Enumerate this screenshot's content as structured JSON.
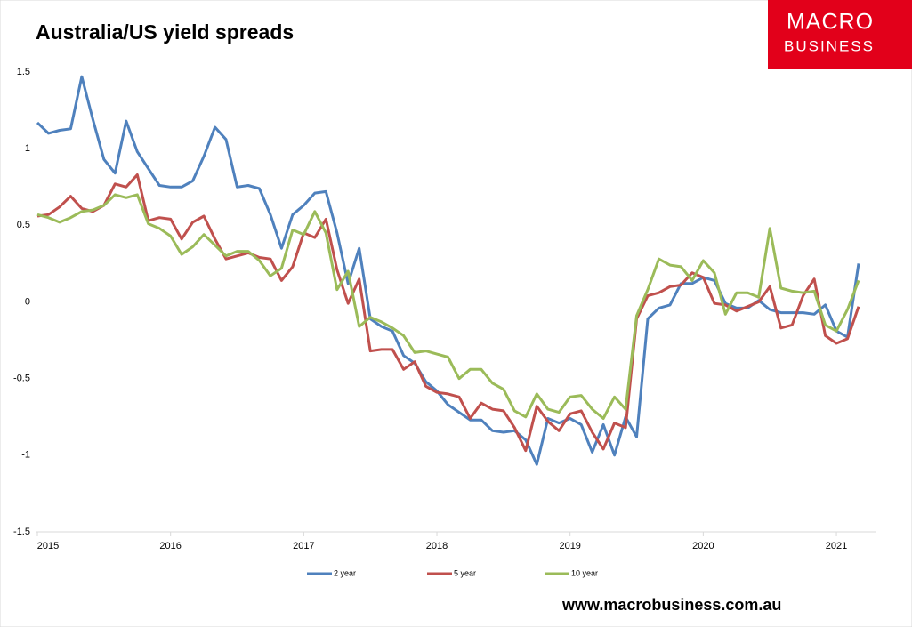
{
  "chart_data": {
    "type": "line",
    "title": "Australia/US yield spreads",
    "logo": [
      "MACRO",
      "BUSINESS"
    ],
    "footer": "www.macrobusiness.com.au",
    "categories": [
      "2015",
      null,
      null,
      null,
      null,
      null,
      null,
      null,
      null,
      null,
      null,
      null,
      "2016",
      null,
      null,
      null,
      null,
      null,
      null,
      null,
      null,
      null,
      null,
      null,
      "2017",
      null,
      null,
      null,
      null,
      null,
      null,
      null,
      null,
      null,
      null,
      null,
      "2018",
      null,
      null,
      null,
      null,
      null,
      null,
      null,
      null,
      null,
      null,
      null,
      "2019",
      null,
      null,
      null,
      null,
      null,
      null,
      null,
      null,
      null,
      null,
      null,
      "2020",
      null,
      null,
      null,
      null,
      null,
      null,
      null,
      null,
      null,
      null,
      null,
      "2021",
      null,
      null
    ],
    "ylim": [
      -1.5,
      1.5
    ],
    "yticks": [
      -1.5,
      -1,
      -0.5,
      0,
      0.5,
      1,
      1.5
    ],
    "grid": false,
    "legend": "bottom",
    "series": [
      {
        "name": "2 year",
        "color": "#4f81bd",
        "values": [
          1.17,
          1.1,
          1.12,
          1.13,
          1.47,
          1.19,
          0.93,
          0.84,
          1.18,
          0.98,
          0.87,
          0.76,
          0.75,
          0.75,
          0.79,
          0.95,
          1.14,
          1.06,
          0.75,
          0.76,
          0.74,
          0.57,
          0.35,
          0.57,
          0.63,
          0.71,
          0.72,
          0.45,
          0.12,
          0.35,
          -0.11,
          -0.16,
          -0.19,
          -0.35,
          -0.4,
          -0.52,
          -0.58,
          -0.67,
          -0.72,
          -0.77,
          -0.77,
          -0.84,
          -0.85,
          -0.84,
          -0.9,
          -1.06,
          -0.76,
          -0.79,
          -0.76,
          -0.8,
          -0.98,
          -0.8,
          -1.0,
          -0.75,
          -0.88,
          -0.11,
          -0.04,
          -0.02,
          0.12,
          0.12,
          0.16,
          0.14,
          -0.01,
          -0.04,
          -0.04,
          0.01,
          -0.05,
          -0.07,
          -0.07,
          -0.07,
          -0.08,
          -0.02,
          -0.19,
          -0.23,
          0.25
        ]
      },
      {
        "name": "5 year",
        "color": "#c0504d",
        "values": [
          0.56,
          0.57,
          0.62,
          0.69,
          0.61,
          0.59,
          0.63,
          0.77,
          0.75,
          0.83,
          0.53,
          0.55,
          0.54,
          0.41,
          0.52,
          0.56,
          0.41,
          0.28,
          0.3,
          0.32,
          0.29,
          0.28,
          0.14,
          0.23,
          0.45,
          0.42,
          0.54,
          0.21,
          -0.01,
          0.15,
          -0.32,
          -0.31,
          -0.31,
          -0.44,
          -0.39,
          -0.55,
          -0.59,
          -0.6,
          -0.62,
          -0.76,
          -0.66,
          -0.7,
          -0.71,
          -0.82,
          -0.97,
          -0.68,
          -0.78,
          -0.84,
          -0.73,
          -0.71,
          -0.85,
          -0.96,
          -0.79,
          -0.82,
          -0.11,
          0.04,
          0.06,
          0.1,
          0.11,
          0.19,
          0.16,
          -0.01,
          -0.02,
          -0.06,
          -0.03,
          0.0,
          0.1,
          -0.17,
          -0.15,
          0.04,
          0.15,
          -0.22,
          -0.27,
          -0.24,
          -0.03
        ]
      },
      {
        "name": "10 year",
        "color": "#9bbb59",
        "values": [
          0.57,
          0.55,
          0.52,
          0.55,
          0.59,
          0.6,
          0.63,
          0.7,
          0.68,
          0.7,
          0.51,
          0.48,
          0.43,
          0.31,
          0.36,
          0.44,
          0.37,
          0.3,
          0.33,
          0.33,
          0.27,
          0.17,
          0.22,
          0.47,
          0.44,
          0.59,
          0.45,
          0.08,
          0.2,
          -0.16,
          -0.1,
          -0.13,
          -0.17,
          -0.22,
          -0.33,
          -0.32,
          -0.34,
          -0.36,
          -0.5,
          -0.44,
          -0.44,
          -0.53,
          -0.57,
          -0.71,
          -0.75,
          -0.6,
          -0.7,
          -0.72,
          -0.62,
          -0.61,
          -0.7,
          -0.76,
          -0.62,
          -0.7,
          -0.09,
          0.08,
          0.28,
          0.24,
          0.23,
          0.14,
          0.27,
          0.19,
          -0.08,
          0.06,
          0.06,
          0.03,
          0.48,
          0.09,
          0.07,
          0.06,
          0.07,
          -0.15,
          -0.19,
          -0.05,
          0.14
        ]
      }
    ]
  }
}
